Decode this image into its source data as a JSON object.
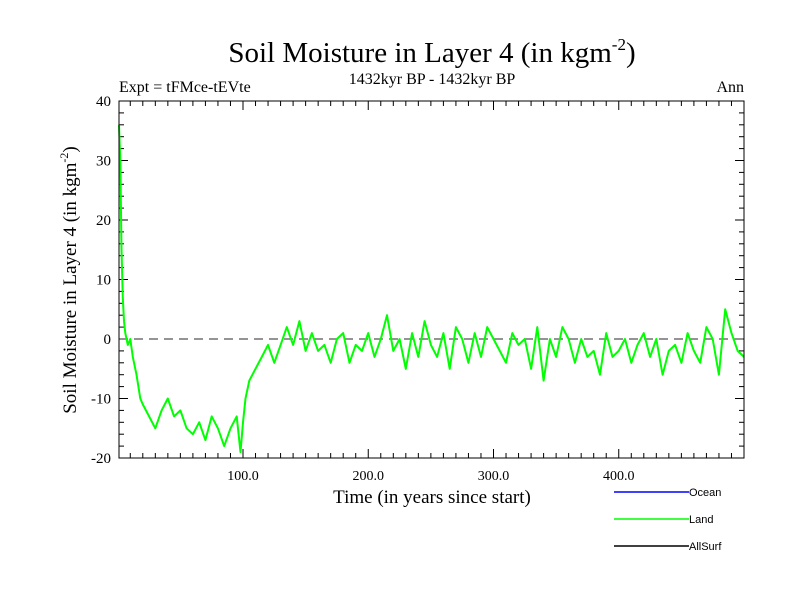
{
  "chart_data": {
    "type": "line",
    "title_main": "Soil Moisture in Layer 4 (in kgm",
    "title_sup": "-2",
    "title_close": ")",
    "expt": "Expt = tFMce-tEVte",
    "subtitle": "1432kyr BP - 1432kyr BP",
    "season": "Ann",
    "xlabel": "Time (in years since start)",
    "ylabel_main": "Soil Moisture in Layer 4 (in kgm",
    "ylabel_sup": "-2",
    "ylabel_close": ")",
    "xlim": [
      1,
      500
    ],
    "ylim": [
      -20,
      40
    ],
    "x_ticks": [
      {
        "value": 100,
        "label": "100.0"
      },
      {
        "value": 200,
        "label": "200.0"
      },
      {
        "value": 300,
        "label": "300.0"
      },
      {
        "value": 400,
        "label": "400.0"
      }
    ],
    "y_ticks": [
      {
        "value": -20,
        "label": "-20"
      },
      {
        "value": -10,
        "label": "-10"
      },
      {
        "value": 0,
        "label": "0"
      },
      {
        "value": 10,
        "label": "10"
      },
      {
        "value": 20,
        "label": "20"
      },
      {
        "value": 30,
        "label": "30"
      },
      {
        "value": 40,
        "label": "40"
      }
    ],
    "reference_line": 0,
    "legend": [
      {
        "name": "Ocean",
        "color": "#0000ff"
      },
      {
        "name": "Land",
        "color": "#00ff00"
      },
      {
        "name": "AllSurf",
        "color": "#000000"
      }
    ],
    "series": [
      {
        "name": "Land",
        "color": "#00ff00",
        "x": [
          1,
          2,
          3,
          4,
          5,
          6,
          8,
          10,
          12,
          15,
          18,
          20,
          25,
          30,
          35,
          40,
          45,
          50,
          55,
          60,
          65,
          70,
          75,
          80,
          85,
          90,
          95,
          98,
          100,
          102,
          105,
          110,
          115,
          120,
          125,
          130,
          135,
          140,
          145,
          150,
          155,
          160,
          165,
          170,
          175,
          180,
          185,
          190,
          195,
          200,
          205,
          210,
          215,
          220,
          225,
          230,
          235,
          240,
          245,
          250,
          255,
          260,
          265,
          270,
          275,
          280,
          285,
          290,
          295,
          300,
          305,
          310,
          315,
          320,
          325,
          330,
          335,
          340,
          345,
          350,
          355,
          360,
          365,
          370,
          375,
          380,
          385,
          390,
          395,
          400,
          405,
          410,
          415,
          420,
          425,
          430,
          435,
          440,
          445,
          450,
          455,
          460,
          465,
          470,
          475,
          480,
          485,
          490,
          495,
          500
        ],
        "values": [
          36,
          30,
          15,
          7,
          3,
          1,
          -1,
          0,
          -3,
          -6,
          -10,
          -11,
          -13,
          -15,
          -12,
          -10,
          -13,
          -12,
          -15,
          -16,
          -14,
          -17,
          -13,
          -15,
          -18,
          -15,
          -13,
          -19,
          -14,
          -10,
          -7,
          -5,
          -3,
          -1,
          -4,
          -1,
          2,
          -1,
          3,
          -2,
          1,
          -2,
          -1,
          -4,
          0,
          1,
          -4,
          -1,
          -2,
          1,
          -3,
          0,
          4,
          -2,
          0,
          -5,
          1,
          -3,
          3,
          -1,
          -3,
          1,
          -5,
          2,
          0,
          -4,
          1,
          -3,
          2,
          0,
          -2,
          -4,
          1,
          -1,
          0,
          -5,
          2,
          -7,
          0,
          -3,
          2,
          0,
          -4,
          0,
          -3,
          -2,
          -6,
          1,
          -3,
          -2,
          0,
          -4,
          -1,
          1,
          -3,
          0,
          -6,
          -2,
          -1,
          -4,
          1,
          -2,
          -4,
          2,
          0,
          -6,
          5,
          1,
          -2,
          -3
        ]
      }
    ]
  }
}
